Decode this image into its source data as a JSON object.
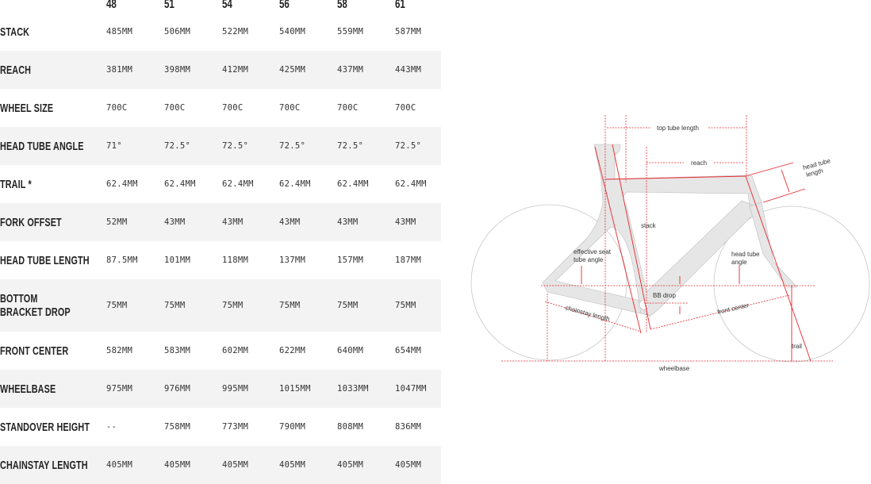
{
  "sizes": [
    "48",
    "51",
    "54",
    "56",
    "58",
    "61"
  ],
  "rows": [
    {
      "label": "STACK",
      "values": [
        "485MM",
        "506MM",
        "522MM",
        "540MM",
        "559MM",
        "587MM"
      ]
    },
    {
      "label": "REACH",
      "values": [
        "381MM",
        "398MM",
        "412MM",
        "425MM",
        "437MM",
        "443MM"
      ]
    },
    {
      "label": "WHEEL SIZE",
      "values": [
        "700C",
        "700C",
        "700C",
        "700C",
        "700C",
        "700C"
      ]
    },
    {
      "label": "HEAD TUBE ANGLE",
      "values": [
        "71°",
        "72.5°",
        "72.5°",
        "72.5°",
        "72.5°",
        "72.5°"
      ]
    },
    {
      "label": "TRAIL *",
      "values": [
        "62.4MM",
        "62.4MM",
        "62.4MM",
        "62.4MM",
        "62.4MM",
        "62.4MM"
      ]
    },
    {
      "label": "FORK OFFSET",
      "values": [
        "52MM",
        "43MM",
        "43MM",
        "43MM",
        "43MM",
        "43MM"
      ]
    },
    {
      "label": "HEAD TUBE LENGTH",
      "values": [
        "87.5MM",
        "101MM",
        "118MM",
        "137MM",
        "157MM",
        "187MM"
      ]
    },
    {
      "label": "BOTTOM BRACKET DROP",
      "values": [
        "75MM",
        "75MM",
        "75MM",
        "75MM",
        "75MM",
        "75MM"
      ]
    },
    {
      "label": "FRONT CENTER",
      "values": [
        "582MM",
        "583MM",
        "602MM",
        "622MM",
        "640MM",
        "654MM"
      ]
    },
    {
      "label": "WHEELBASE",
      "values": [
        "975MM",
        "976MM",
        "995MM",
        "1015MM",
        "1033MM",
        "1047MM"
      ]
    },
    {
      "label": "STANDOVER HEIGHT",
      "values": [
        "--",
        "758MM",
        "773MM",
        "790MM",
        "808MM",
        "836MM"
      ]
    },
    {
      "label": "CHAINSTAY LENGTH",
      "values": [
        "405MM",
        "405MM",
        "405MM",
        "405MM",
        "405MM",
        "405MM"
      ]
    }
  ],
  "diagram": {
    "top_tube_length": "top tube length",
    "reach": "reach",
    "head_tube_length_1": "head tube",
    "head_tube_length_2": "length",
    "stack": "stack",
    "effective_seat_1": "effective seat",
    "effective_seat_2": "tube angle",
    "head_tube_angle_1": "head tube",
    "head_tube_angle_2": "angle",
    "bb_drop": "BB drop",
    "chainstay_length": "chainstay length",
    "front_center": "front center",
    "trail": "trail",
    "wheelbase": "wheelbase",
    "accent": "#e8262d",
    "frame_fill": "#e6e6e6"
  }
}
